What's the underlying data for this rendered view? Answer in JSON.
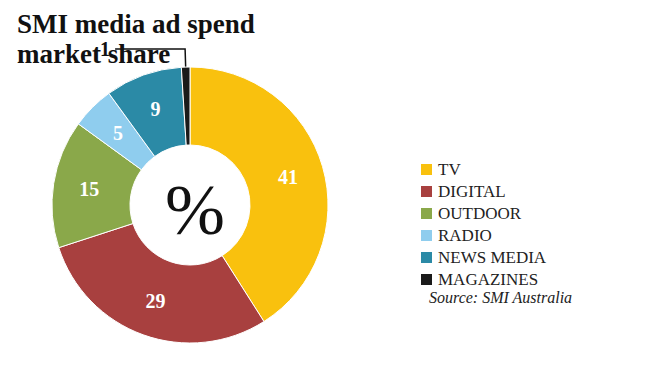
{
  "chart_data": {
    "type": "pie",
    "title": "SMI media ad spend market share",
    "center_label": "%",
    "source": "Source: SMI Australia",
    "categories": [
      "TV",
      "DIGITAL",
      "OUTDOOR",
      "RADIO",
      "NEWS MEDIA",
      "MAGAZINES"
    ],
    "values": [
      41,
      29,
      15,
      5,
      9,
      1
    ],
    "colors": [
      "#f9c10e",
      "#a8403f",
      "#8aa84a",
      "#8fcdee",
      "#2b8aa6",
      "#1a1a1a"
    ],
    "data_labels": true,
    "legend": "right"
  }
}
